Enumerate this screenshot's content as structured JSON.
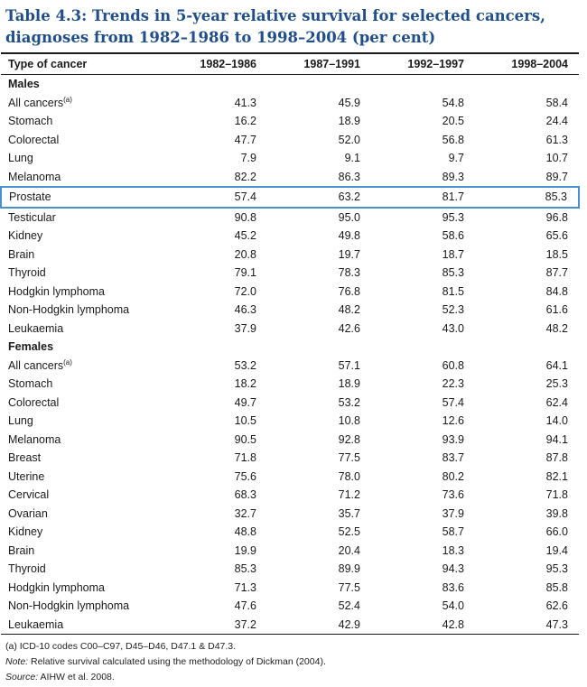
{
  "title": "Table 4.3: Trends in 5-year relative survival for selected cancers, diagnoses from 1982–1986 to 1998–2004 (per cent)",
  "headers": [
    "Type of cancer",
    "1982–1986",
    "1987–1991",
    "1992–1997",
    "1998–2004"
  ],
  "sections": [
    {
      "name": "Males",
      "rows": [
        {
          "label": "All cancers",
          "sup": "(a)",
          "values": [
            "41.3",
            "45.9",
            "54.8",
            "58.4"
          ]
        },
        {
          "label": "Stomach",
          "values": [
            "16.2",
            "18.9",
            "20.5",
            "24.4"
          ]
        },
        {
          "label": "Colorectal",
          "values": [
            "47.7",
            "52.0",
            "56.8",
            "61.3"
          ]
        },
        {
          "label": "Lung",
          "values": [
            "7.9",
            "9.1",
            "9.7",
            "10.7"
          ]
        },
        {
          "label": "Melanoma",
          "values": [
            "82.2",
            "86.3",
            "89.3",
            "89.7"
          ]
        },
        {
          "label": "Prostate",
          "values": [
            "57.4",
            "63.2",
            "81.7",
            "85.3"
          ],
          "highlight": true
        },
        {
          "label": "Testicular",
          "values": [
            "90.8",
            "95.0",
            "95.3",
            "96.8"
          ]
        },
        {
          "label": "Kidney",
          "values": [
            "45.2",
            "49.8",
            "58.6",
            "65.6"
          ]
        },
        {
          "label": "Brain",
          "values": [
            "20.8",
            "19.7",
            "18.7",
            "18.5"
          ]
        },
        {
          "label": "Thyroid",
          "values": [
            "79.1",
            "78.3",
            "85.3",
            "87.7"
          ]
        },
        {
          "label": "Hodgkin lymphoma",
          "values": [
            "72.0",
            "76.8",
            "81.5",
            "84.8"
          ]
        },
        {
          "label": "Non-Hodgkin lymphoma",
          "values": [
            "46.3",
            "48.2",
            "52.3",
            "61.6"
          ]
        },
        {
          "label": "Leukaemia",
          "values": [
            "37.9",
            "42.6",
            "43.0",
            "48.2"
          ]
        }
      ]
    },
    {
      "name": "Females",
      "rows": [
        {
          "label": "All cancers",
          "sup": "(a)",
          "values": [
            "53.2",
            "57.1",
            "60.8",
            "64.1"
          ]
        },
        {
          "label": "Stomach",
          "values": [
            "18.2",
            "18.9",
            "22.3",
            "25.3"
          ]
        },
        {
          "label": "Colorectal",
          "values": [
            "49.7",
            "53.2",
            "57.4",
            "62.4"
          ]
        },
        {
          "label": "Lung",
          "values": [
            "10.5",
            "10.8",
            "12.6",
            "14.0"
          ]
        },
        {
          "label": "Melanoma",
          "values": [
            "90.5",
            "92.8",
            "93.9",
            "94.1"
          ]
        },
        {
          "label": "Breast",
          "values": [
            "71.8",
            "77.5",
            "83.7",
            "87.8"
          ]
        },
        {
          "label": "Uterine",
          "values": [
            "75.6",
            "78.0",
            "80.2",
            "82.1"
          ]
        },
        {
          "label": "Cervical",
          "values": [
            "68.3",
            "71.2",
            "73.6",
            "71.8"
          ]
        },
        {
          "label": "Ovarian",
          "values": [
            "32.7",
            "35.7",
            "37.9",
            "39.8"
          ]
        },
        {
          "label": "Kidney",
          "values": [
            "48.8",
            "52.5",
            "58.7",
            "66.0"
          ]
        },
        {
          "label": "Brain",
          "values": [
            "19.9",
            "20.4",
            "18.3",
            "19.4"
          ]
        },
        {
          "label": "Thyroid",
          "values": [
            "85.3",
            "89.9",
            "94.3",
            "95.3"
          ]
        },
        {
          "label": "Hodgkin lymphoma",
          "values": [
            "71.3",
            "77.5",
            "83.6",
            "85.8"
          ]
        },
        {
          "label": "Non-Hodgkin lymphoma",
          "values": [
            "47.6",
            "52.4",
            "54.0",
            "62.6"
          ]
        },
        {
          "label": "Leukaemia",
          "values": [
            "37.2",
            "42.9",
            "42.8",
            "47.3"
          ]
        }
      ]
    }
  ],
  "notes": {
    "a": "(a)  ICD-10 codes C00–C97, D45–D46, D47.1 & D47.3.",
    "note_label": "Note:",
    "note_text": " Relative survival calculated using the methodology of Dickman (2004).",
    "source_label": "Source:",
    "source_text": " AIHW et al. 2008."
  },
  "colors": {
    "title": "#1f4e8c",
    "highlight_border": "#4a90d0"
  }
}
